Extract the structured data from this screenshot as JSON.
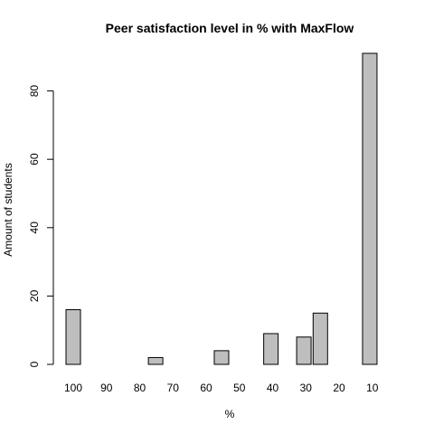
{
  "chart_data": {
    "type": "bar",
    "title": "Peer satisfaction level in % with MaxFlow",
    "xlabel": "%",
    "ylabel": "Amount of students",
    "x_tick_labels": [
      "100",
      "90",
      "80",
      "70",
      "60",
      "50",
      "40",
      "30",
      "20",
      "10"
    ],
    "values": [
      16,
      0,
      0,
      0,
      0,
      2,
      0,
      0,
      0,
      4,
      0,
      0,
      9,
      0,
      8,
      15,
      0,
      0,
      91
    ],
    "y_ticks": [
      0,
      20,
      40,
      60,
      80
    ],
    "ylim": [
      0,
      91
    ],
    "bar_color": "#bebebe",
    "grid": false,
    "legend": "none"
  }
}
